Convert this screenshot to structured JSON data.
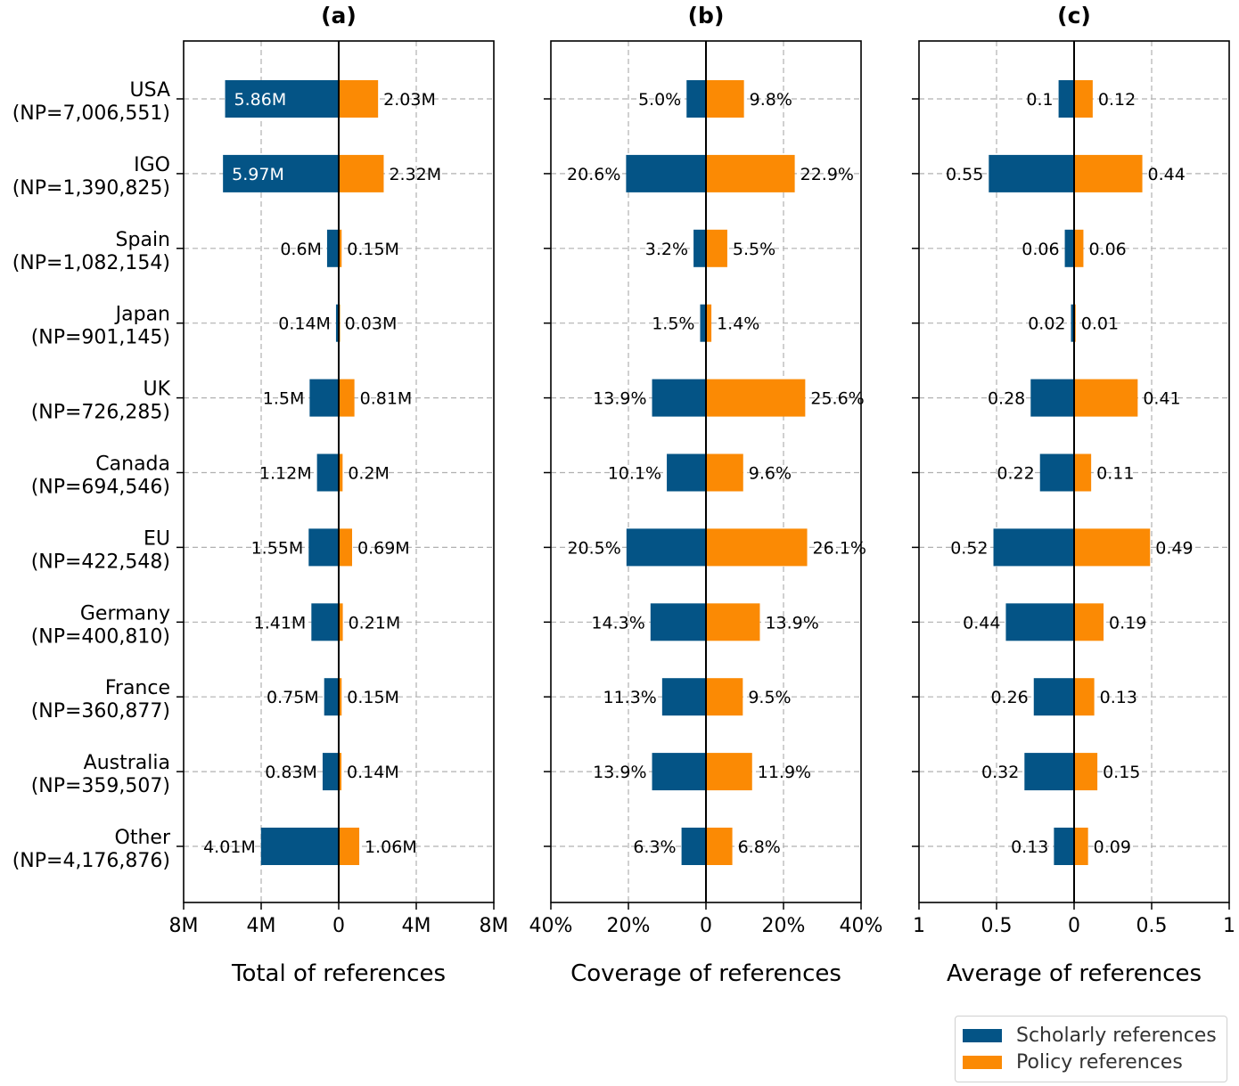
{
  "colors": {
    "scholarly": "#045486",
    "policy": "#fb8a04",
    "grid": "#b0b0b0"
  },
  "legend": {
    "items": [
      {
        "label": "Scholarly references",
        "series": "scholarly"
      },
      {
        "label": "Policy references",
        "series": "policy"
      }
    ]
  },
  "chart_data": [
    {
      "type": "bar",
      "orientation": "horizontal-diverging",
      "title": "(a)",
      "xlabel": "Total of references",
      "xlim": [
        -8000000,
        8000000
      ],
      "xticks": [
        -8000000,
        -4000000,
        0,
        4000000,
        8000000
      ],
      "xtick_labels": [
        "8M",
        "4M",
        "0",
        "4M",
        "8M"
      ],
      "grid": true,
      "categories": [
        "USA\n(NP=7,006,551)",
        "IGO\n(NP=1,390,825)",
        "Spain\n(NP=1,082,154)",
        "Japan\n(NP=901,145)",
        "UK\n(NP=726,285)",
        "Canada\n(NP=694,546)",
        "EU\n(NP=422,548)",
        "Germany\n(NP=400,810)",
        "France\n(NP=360,877)",
        "Australia\n(NP=359,507)",
        "Other\n(NP=4,176,876)"
      ],
      "series": [
        {
          "name": "Scholarly references",
          "side": "left",
          "values": [
            5860000,
            5970000,
            600000,
            140000,
            1500000,
            1120000,
            1550000,
            1410000,
            750000,
            830000,
            4010000
          ],
          "labels": [
            "5.86M",
            "5.97M",
            "0.6M",
            "0.14M",
            "1.5M",
            "1.12M",
            "1.55M",
            "1.41M",
            "0.75M",
            "0.83M",
            "4.01M"
          ]
        },
        {
          "name": "Policy references",
          "side": "right",
          "values": [
            2030000,
            2320000,
            150000,
            30000,
            810000,
            200000,
            690000,
            210000,
            150000,
            140000,
            1060000
          ],
          "labels": [
            "2.03M",
            "2.32M",
            "0.15M",
            "0.03M",
            "0.81M",
            "0.2M",
            "0.69M",
            "0.21M",
            "0.15M",
            "0.14M",
            "1.06M"
          ]
        }
      ],
      "inside_label_rows": [
        0,
        1
      ]
    },
    {
      "type": "bar",
      "orientation": "horizontal-diverging",
      "title": "(b)",
      "xlabel": "Coverage of references",
      "xlim": [
        -40,
        40
      ],
      "xticks": [
        -40,
        -20,
        0,
        20,
        40
      ],
      "xtick_labels": [
        "40%",
        "20%",
        "0",
        "20%",
        "40%"
      ],
      "grid": true,
      "series": [
        {
          "name": "Scholarly references",
          "side": "left",
          "values": [
            5.0,
            20.6,
            3.2,
            1.5,
            13.9,
            10.1,
            20.5,
            14.3,
            11.3,
            13.9,
            6.3
          ],
          "labels": [
            "5.0%",
            "20.6%",
            "3.2%",
            "1.5%",
            "13.9%",
            "10.1%",
            "20.5%",
            "14.3%",
            "11.3%",
            "13.9%",
            "6.3%"
          ]
        },
        {
          "name": "Policy references",
          "side": "right",
          "values": [
            9.8,
            22.9,
            5.5,
            1.4,
            25.6,
            9.6,
            26.1,
            13.9,
            9.5,
            11.9,
            6.8
          ],
          "labels": [
            "9.8%",
            "22.9%",
            "5.5%",
            "1.4%",
            "25.6%",
            "9.6%",
            "26.1%",
            "13.9%",
            "9.5%",
            "11.9%",
            "6.8%"
          ]
        }
      ],
      "inside_label_rows": []
    },
    {
      "type": "bar",
      "orientation": "horizontal-diverging",
      "title": "(c)",
      "xlabel": "Average of references",
      "xlim": [
        -1,
        1
      ],
      "xticks": [
        -1,
        -0.5,
        0,
        0.5,
        1
      ],
      "xtick_labels": [
        "1",
        "0.5",
        "0",
        "0.5",
        "1"
      ],
      "grid": true,
      "series": [
        {
          "name": "Scholarly references",
          "side": "left",
          "values": [
            0.1,
            0.55,
            0.06,
            0.02,
            0.28,
            0.22,
            0.52,
            0.44,
            0.26,
            0.32,
            0.13
          ],
          "labels": [
            "0.1",
            "0.55",
            "0.06",
            "0.02",
            "0.28",
            "0.22",
            "0.52",
            "0.44",
            "0.26",
            "0.32",
            "0.13"
          ]
        },
        {
          "name": "Policy references",
          "side": "right",
          "values": [
            0.12,
            0.44,
            0.06,
            0.01,
            0.41,
            0.11,
            0.49,
            0.19,
            0.13,
            0.15,
            0.09
          ],
          "labels": [
            "0.12",
            "0.44",
            "0.06",
            "0.01",
            "0.41",
            "0.11",
            "0.49",
            "0.19",
            "0.13",
            "0.15",
            "0.09"
          ]
        }
      ],
      "inside_label_rows": []
    }
  ],
  "legend_placement": "bottom-right"
}
